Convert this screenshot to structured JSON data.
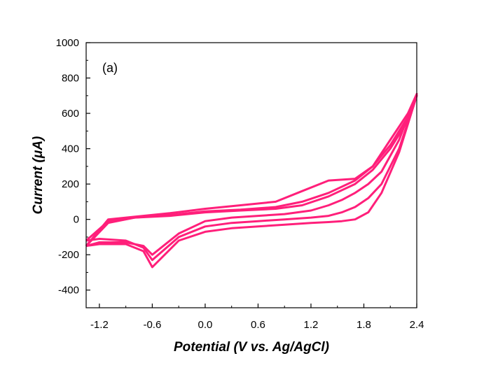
{
  "chart_data": {
    "type": "line",
    "title": "",
    "panel_label": "(a)",
    "xlabel": "Potential (V vs. Ag/AgCl)",
    "ylabel": "Current (μA)",
    "xlim": [
      -1.35,
      2.4
    ],
    "ylim": [
      -500,
      1000
    ],
    "x_ticks": [
      -1.2,
      -0.6,
      0.0,
      0.6,
      1.2,
      1.8,
      2.4
    ],
    "x_tick_labels": [
      "-1.2",
      "-0.6",
      "0.0",
      "0.6",
      "1.2",
      "1.8",
      "2.4"
    ],
    "y_ticks": [
      -400,
      -200,
      0,
      200,
      400,
      600,
      800,
      1000
    ],
    "y_tick_labels": [
      "-400",
      "-200",
      "0",
      "200",
      "400",
      "600",
      "800",
      "1000"
    ],
    "grid": false,
    "line_color": "#ff1f7a",
    "series": [
      {
        "x": [
          -1.35,
          -1.2,
          -0.9,
          -0.7,
          -0.6,
          -0.3,
          0.0,
          0.3,
          0.6,
          0.9,
          1.2,
          1.4,
          1.55,
          1.7,
          1.85,
          2.0,
          2.2,
          2.4,
          2.3,
          2.1,
          1.9,
          1.7,
          1.4,
          1.1,
          0.8,
          0.4,
          0.0,
          -0.4,
          -0.8,
          -1.1,
          -1.35
        ],
        "y": [
          -150,
          -140,
          -140,
          -180,
          -270,
          -120,
          -70,
          -50,
          -40,
          -30,
          -20,
          -15,
          -10,
          0,
          40,
          150,
          380,
          700,
          560,
          400,
          280,
          200,
          130,
          80,
          60,
          50,
          40,
          20,
          10,
          -20,
          -150
        ]
      },
      {
        "x": [
          -1.35,
          -1.2,
          -0.9,
          -0.7,
          -0.6,
          -0.3,
          0.0,
          0.3,
          0.6,
          0.9,
          1.2,
          1.4,
          1.55,
          1.7,
          1.85,
          2.0,
          2.2,
          2.4,
          2.3,
          2.1,
          1.9,
          1.7,
          1.4,
          1.1,
          0.8,
          0.4,
          0.0,
          -0.4,
          -0.8,
          -1.1,
          -1.35
        ],
        "y": [
          -120,
          -110,
          -120,
          -160,
          -230,
          -100,
          -40,
          -20,
          -10,
          0,
          10,
          20,
          40,
          70,
          120,
          200,
          400,
          700,
          580,
          420,
          300,
          220,
          150,
          100,
          70,
          55,
          45,
          25,
          10,
          -10,
          -120
        ]
      },
      {
        "x": [
          -1.35,
          -1.2,
          -0.9,
          -0.7,
          -0.6,
          -0.3,
          0.0,
          0.3,
          0.6,
          0.9,
          1.2,
          1.4,
          1.55,
          1.7,
          1.85,
          2.0,
          2.2,
          2.4,
          2.3,
          2.1,
          1.9,
          1.7,
          1.4,
          1.1,
          0.8,
          0.4,
          0.0,
          -0.4,
          -0.8,
          -1.1,
          -1.35
        ],
        "y": [
          -150,
          -130,
          -130,
          -150,
          -200,
          -80,
          -10,
          10,
          20,
          30,
          50,
          80,
          110,
          150,
          200,
          270,
          450,
          710,
          600,
          450,
          300,
          230,
          220,
          160,
          100,
          80,
          60,
          35,
          15,
          0,
          -150
        ]
      }
    ]
  }
}
